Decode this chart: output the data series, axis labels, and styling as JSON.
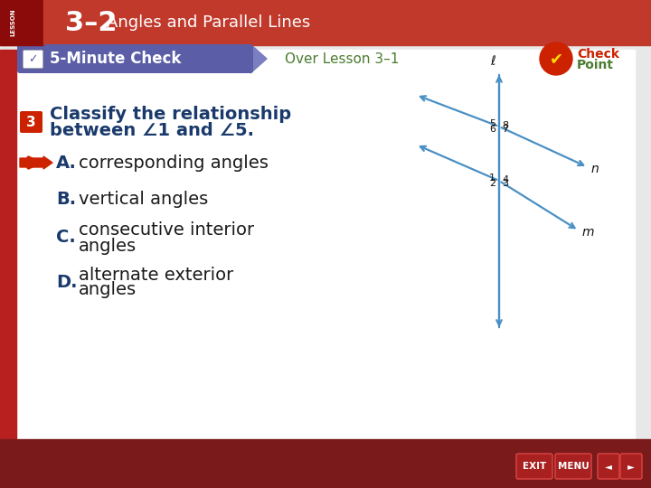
{
  "header_bg": "#c0392b",
  "header_bg2": "#a93226",
  "lesson_label": "LESSON",
  "lesson_num": "3–2",
  "lesson_title": "Angles and Parallel Lines",
  "main_bg": "#e8e8e8",
  "content_bg": "#ffffff",
  "five_min_bg": "#5b5ea6",
  "five_min_text": "5-Minute Check",
  "over_lesson": "Over Lesson 3–1",
  "over_lesson_color": "#4a7c2f",
  "q_badge_color": "#cc2200",
  "q_num": "3",
  "q_line1": "Classify the relationship",
  "q_line2": "between ∠1 and ∠5.",
  "q_color": "#1a3a6b",
  "arrow_color": "#cc2200",
  "opt_letter_color": "#1a3a6b",
  "opt_text_color": "#1a1a1a",
  "opt_A_letter": "A.",
  "opt_A_text": "corresponding angles",
  "opt_B_letter": "B.",
  "opt_B_text": "vertical angles",
  "opt_C_letter": "C.",
  "opt_C_line1": "consecutive interior",
  "opt_C_line2": "angles",
  "opt_D_letter": "D.",
  "opt_D_line1": "alternate exterior",
  "opt_D_line2": "angles",
  "diag_color": "#4a90c4",
  "bottom_bar": "#7b1a1a",
  "btn_color": "#a82020",
  "left_bar_color": "#b82020"
}
